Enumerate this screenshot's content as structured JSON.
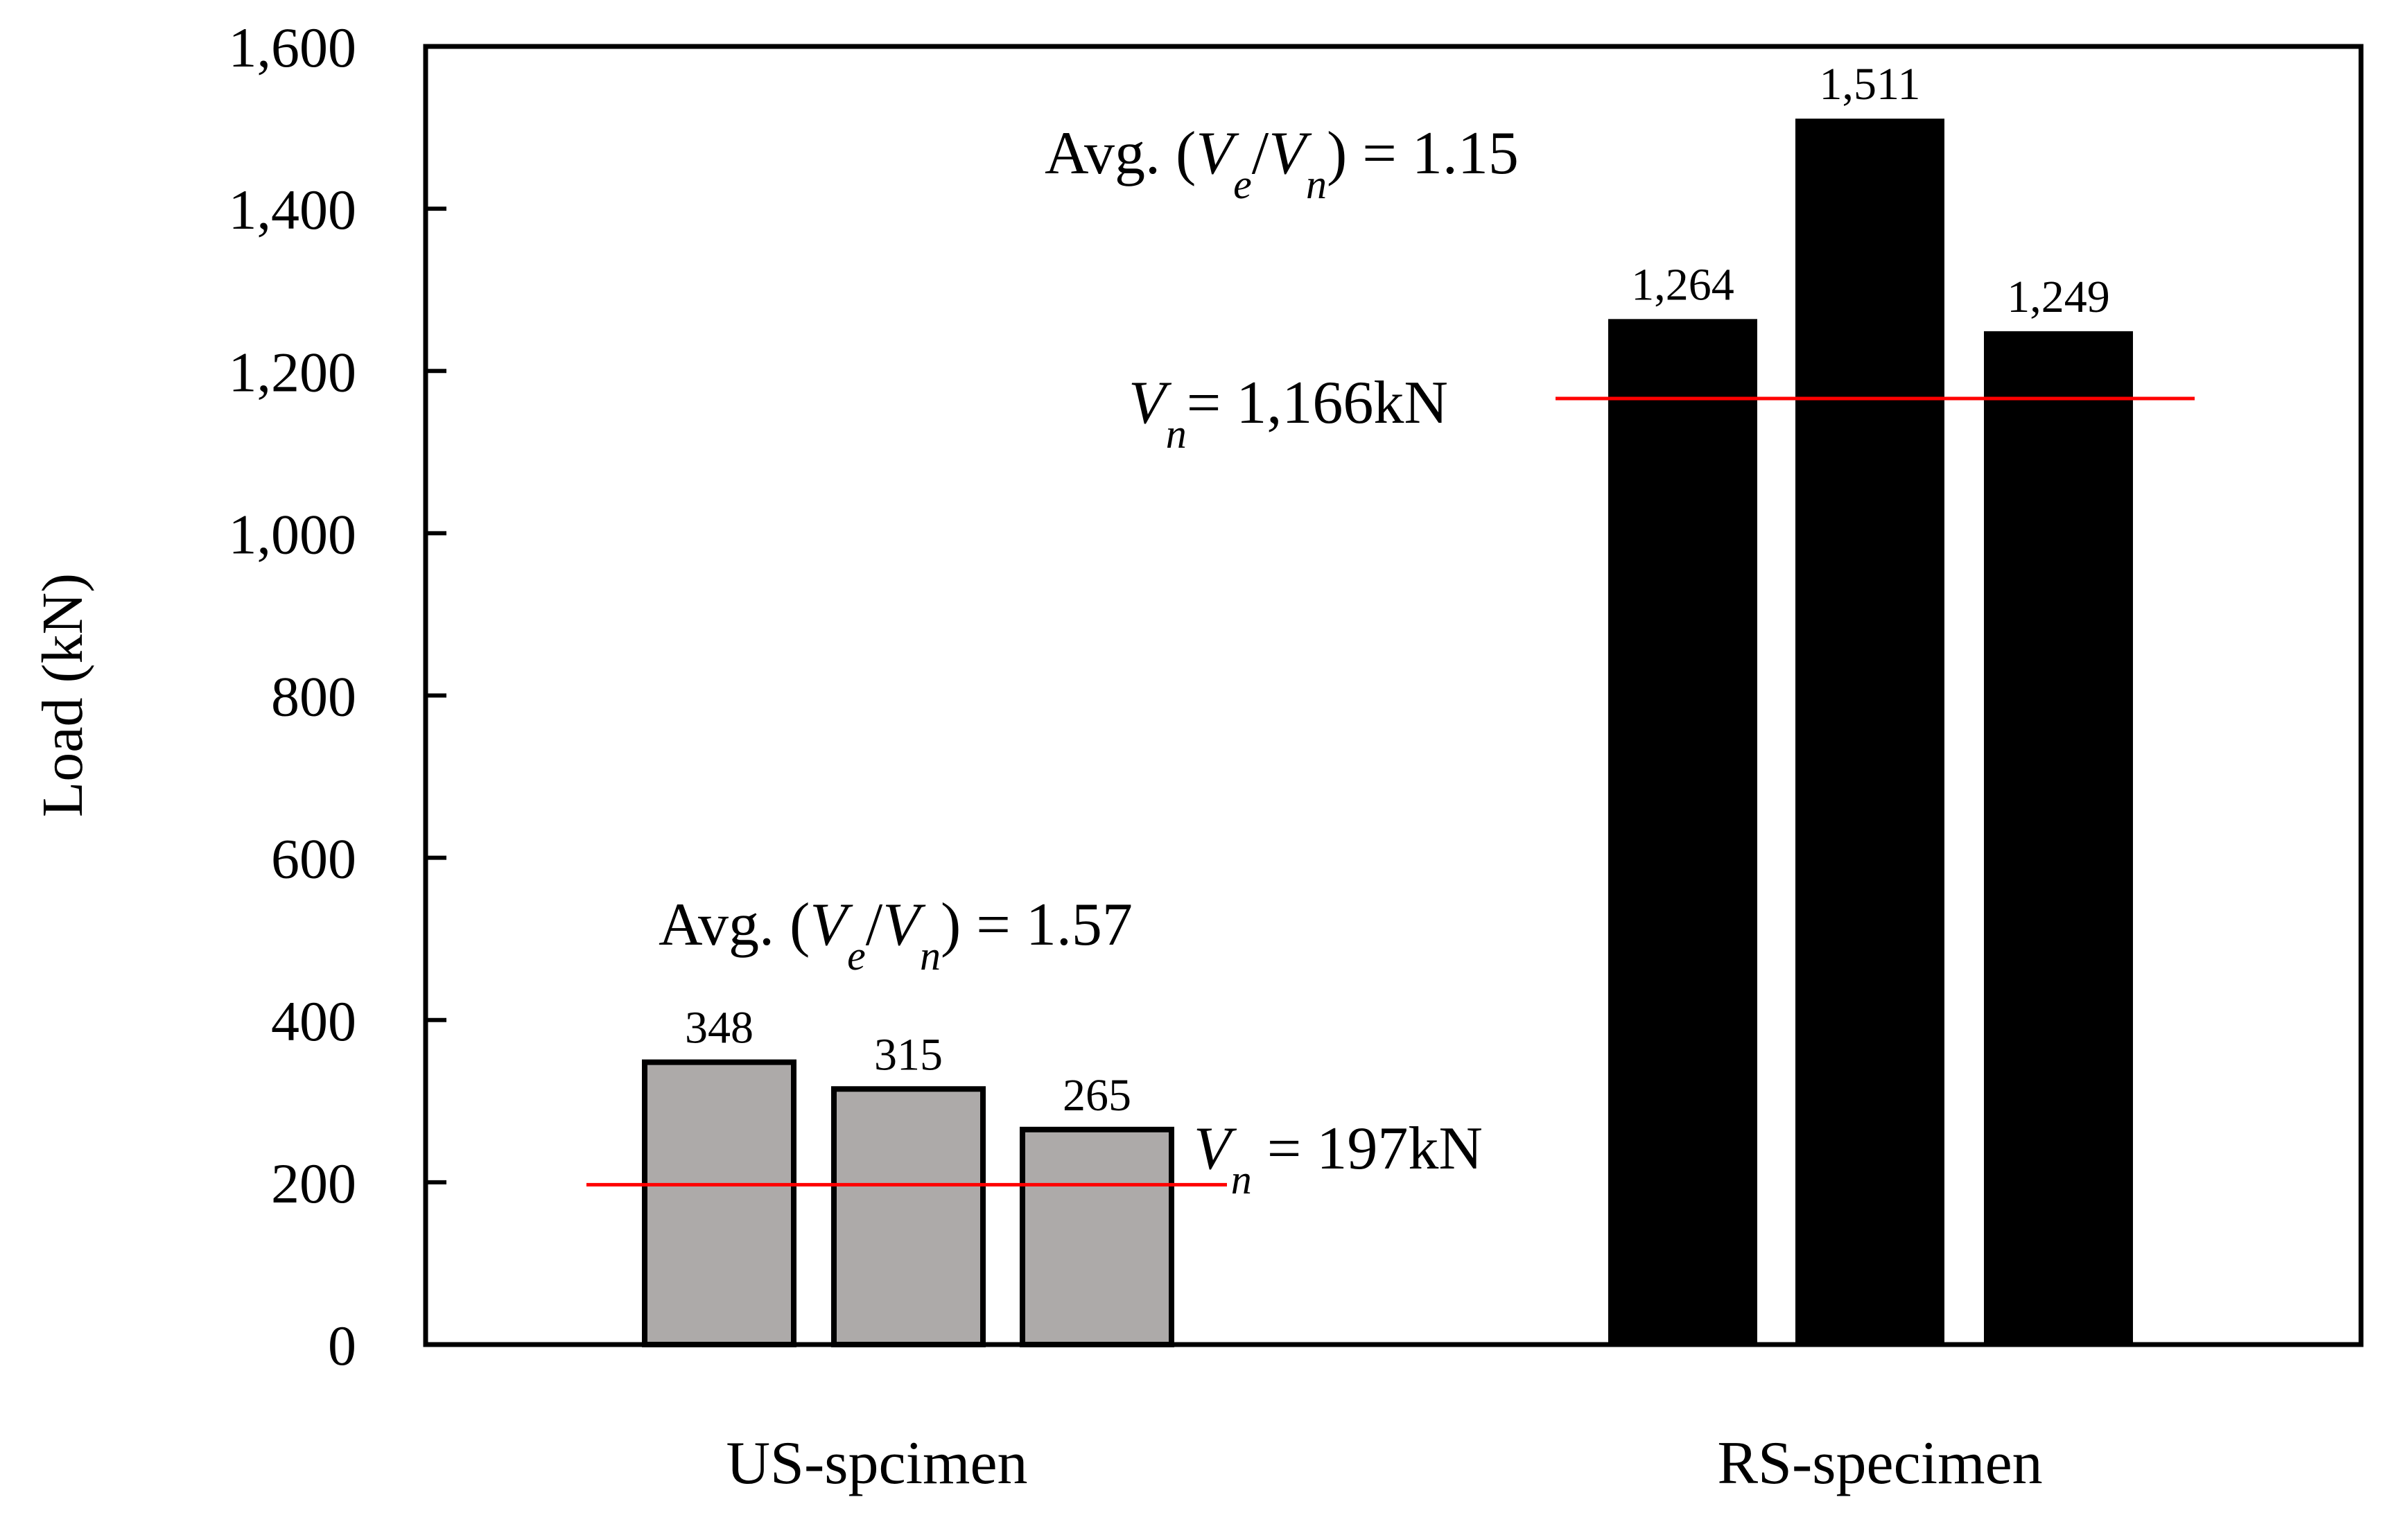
{
  "chart_data": {
    "type": "bar",
    "title": "",
    "xlabel": "",
    "ylabel": "Load (kN)",
    "ylim": [
      0,
      1600
    ],
    "yticks": [
      0,
      200,
      400,
      600,
      800,
      1000,
      1200,
      1400,
      1600
    ],
    "ytick_labels": [
      "0",
      "200",
      "400",
      "600",
      "800",
      "1,000",
      "1,200",
      "1,400",
      "1,600"
    ],
    "grid": false,
    "groups": [
      {
        "name": "US-spcimen",
        "values": [
          348,
          315,
          265
        ],
        "value_labels": [
          "348",
          "315",
          "265"
        ],
        "color": "#ADAAA9",
        "edge_color": "#000000",
        "reference": {
          "value": 197,
          "color": "#FF0000",
          "label_var": "V",
          "label_sub": "n",
          "label_text": " = 197kN"
        },
        "ratio": {
          "prefix": "Avg. (",
          "num_var": "V",
          "num_sub": "e",
          "slash": "/",
          "den_var": "V",
          "den_sub": "n",
          "suffix": ") = 1.57"
        }
      },
      {
        "name": "RS-specimen",
        "values": [
          1264,
          1511,
          1249
        ],
        "value_labels": [
          "1,264",
          "1,511",
          "1,249"
        ],
        "color": "#000000",
        "edge_color": "#000000",
        "reference": {
          "value": 1166,
          "color": "#FF0000",
          "label_var": "V",
          "label_sub": "n",
          "label_text": "= 1,166kN"
        },
        "ratio": {
          "prefix": "Avg. (",
          "num_var": "V",
          "num_sub": "e",
          "slash": "/",
          "den_var": "V",
          "den_sub": "n",
          "suffix": ") = 1.15"
        }
      }
    ]
  }
}
